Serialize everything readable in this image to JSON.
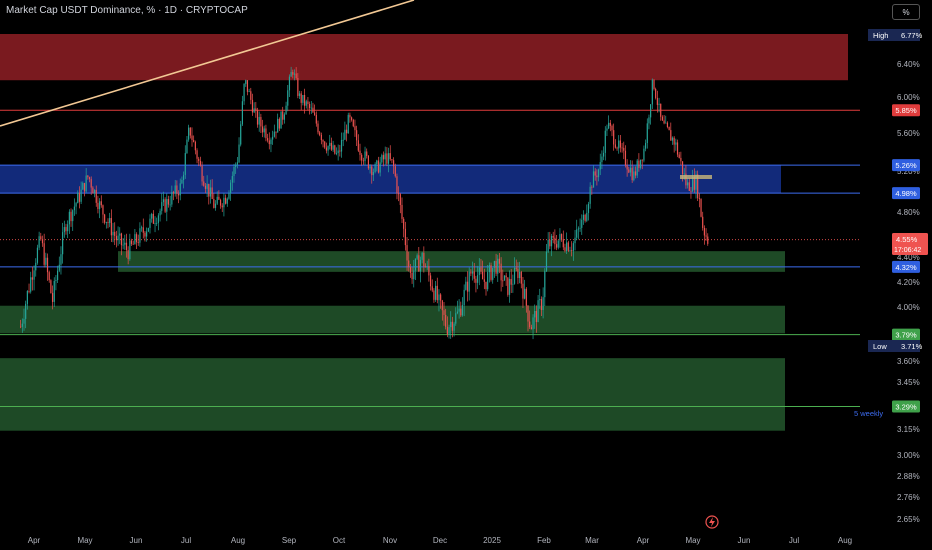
{
  "header": {
    "title": "Market Cap USDT Dominance, % · 1D · CRYPTOCAP",
    "unit_button": "%"
  },
  "colors": {
    "background": "#000000",
    "up": "#26a69a",
    "down": "#ef5350",
    "red_zone": "#7a1a1f",
    "blue_zone": "#122a7a",
    "green_zone": "#1e4a26",
    "red_line": "#e03c3c",
    "blue_line": "#3d6cf0",
    "green_line": "#4caf50",
    "trendline": "#f2c894"
  },
  "chart_data": {
    "type": "candlestick",
    "y_axis": {
      "scale": "log",
      "range": [
        2.62,
        6.95
      ],
      "ticks": [
        "6.40%",
        "6.00%",
        "5.60%",
        "5.20%",
        "4.80%",
        "4.40%",
        "4.20%",
        "4.00%",
        "3.60%",
        "3.45%",
        "3.15%",
        "3.00%",
        "2.88%",
        "2.76%",
        "2.65%"
      ]
    },
    "x_axis": {
      "ticks": [
        "Apr",
        "May",
        "Jun",
        "Jul",
        "Aug",
        "Sep",
        "Oct",
        "Nov",
        "Dec",
        "2025",
        "Feb",
        "Mar",
        "Apr",
        "May",
        "Jun",
        "Jul",
        "Aug"
      ]
    },
    "price_points": [
      [
        "Mar 24",
        3.85
      ],
      [
        "Apr 1",
        4.35
      ],
      [
        "Apr 5",
        4.55
      ],
      [
        "Apr 12",
        4.05
      ],
      [
        "Apr 20",
        4.7
      ],
      [
        "Apr 28",
        4.95
      ],
      [
        "May 3",
        5.15
      ],
      [
        "May 10",
        4.85
      ],
      [
        "May 20",
        4.55
      ],
      [
        "May 27",
        4.45
      ],
      [
        "Jun 4",
        4.6
      ],
      [
        "Jun 12",
        4.75
      ],
      [
        "Jun 20",
        4.9
      ],
      [
        "Jun 28",
        5.05
      ],
      [
        "Jul 3",
        5.65
      ],
      [
        "Jul 10",
        5.2
      ],
      [
        "Jul 18",
        4.85
      ],
      [
        "Jul 25",
        4.95
      ],
      [
        "Aug 1",
        5.35
      ],
      [
        "Aug 5",
        6.2
      ],
      [
        "Aug 12",
        5.75
      ],
      [
        "Aug 20",
        5.55
      ],
      [
        "Aug 28",
        5.8
      ],
      [
        "Sep 3",
        6.35
      ],
      [
        "Sep 7",
        6.0
      ],
      [
        "Sep 14",
        5.85
      ],
      [
        "Sep 22",
        5.5
      ],
      [
        "Sep 30",
        5.35
      ],
      [
        "Oct 7",
        5.75
      ],
      [
        "Oct 14",
        5.4
      ],
      [
        "Oct 22",
        5.2
      ],
      [
        "Oct 29",
        5.35
      ],
      [
        "Nov 3",
        5.25
      ],
      [
        "Nov 8",
        4.75
      ],
      [
        "Nov 13",
        4.25
      ],
      [
        "Nov 20",
        4.4
      ],
      [
        "Nov 28",
        4.1
      ],
      [
        "Dec 5",
        3.85
      ],
      [
        "Dec 12",
        3.95
      ],
      [
        "Dec 20",
        4.3
      ],
      [
        "Dec 28",
        4.2
      ],
      [
        "Jan 3",
        4.35
      ],
      [
        "Jan 10",
        4.15
      ],
      [
        "Jan 17",
        4.3
      ],
      [
        "Jan 24",
        3.85
      ],
      [
        "Jan 31",
        4.05
      ],
      [
        "Feb 3",
        4.5
      ],
      [
        "Feb 10",
        4.55
      ],
      [
        "Feb 18",
        4.5
      ],
      [
        "Feb 25",
        4.75
      ],
      [
        "Mar 1",
        5.1
      ],
      [
        "Mar 6",
        5.25
      ],
      [
        "Mar 10",
        5.7
      ],
      [
        "Mar 18",
        5.4
      ],
      [
        "Mar 26",
        5.15
      ],
      [
        "Apr 2",
        5.45
      ],
      [
        "Apr 7",
        6.2
      ],
      [
        "Apr 12",
        5.7
      ],
      [
        "Apr 20",
        5.5
      ],
      [
        "Apr 27",
        5.05
      ],
      [
        "May 3",
        5.1
      ],
      [
        "May 7",
        4.65
      ],
      [
        "May 10",
        4.55
      ]
    ],
    "zones": [
      {
        "color": "red",
        "from": 6.2,
        "to": 6.77
      },
      {
        "color": "blue",
        "from": 4.98,
        "to": 5.26
      },
      {
        "color": "green",
        "from": 4.28,
        "to": 4.45
      },
      {
        "color": "green",
        "from": 3.8,
        "to": 4.01
      },
      {
        "color": "green",
        "from": 3.14,
        "to": 3.62
      }
    ],
    "levels": [
      {
        "value": 5.85,
        "label": "5.85%",
        "color": "red"
      },
      {
        "value": 5.26,
        "label": "5.26%",
        "color": "blue"
      },
      {
        "value": 4.98,
        "label": "4.98%",
        "color": "blue"
      },
      {
        "value": 4.32,
        "label": "4.32%",
        "color": "blue"
      },
      {
        "value": 3.79,
        "label": "3.79%",
        "color": "green"
      },
      {
        "value": 3.29,
        "label": "3.29%",
        "color": "green"
      }
    ],
    "high": {
      "label": "High",
      "value": "6.77%"
    },
    "low": {
      "label": "Low",
      "value": "3.71%"
    },
    "current": {
      "value": "4.55%",
      "countdown": "17:06:42"
    },
    "annotations": [
      "5 weekly"
    ]
  }
}
